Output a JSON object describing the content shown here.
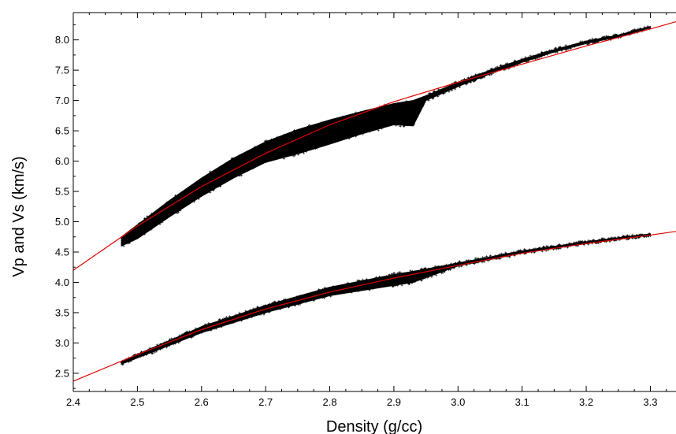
{
  "chart_data": {
    "type": "scatter",
    "title": "",
    "xlabel": "Density (g/cc)",
    "ylabel": "Vp and Vs (km/s)",
    "xlim": [
      2.4,
      3.34
    ],
    "ylim": [
      2.2,
      8.45
    ],
    "x_ticks": [
      "2.4",
      "2.5",
      "2.6",
      "2.7",
      "2.8",
      "2.9",
      "3.0",
      "3.1",
      "3.2",
      "3.3"
    ],
    "y_ticks": [
      "2.5",
      "3.0",
      "3.5",
      "4.0",
      "4.5",
      "5.0",
      "5.5",
      "6.0",
      "6.5",
      "7.0",
      "7.5",
      "8.0"
    ],
    "grid": false,
    "colors": {
      "points": "#000000",
      "fit": "#e00000"
    },
    "series": [
      {
        "kind": "scatter",
        "band": "upper",
        "x": [
          2.475,
          2.5,
          2.55,
          2.6,
          2.65,
          2.7,
          2.75,
          2.8,
          2.85,
          2.9,
          2.93,
          2.95,
          3.0,
          3.05,
          3.1,
          3.15,
          3.2,
          3.25,
          3.3
        ],
        "y_upper": [
          4.75,
          4.95,
          5.35,
          5.72,
          6.05,
          6.32,
          6.52,
          6.68,
          6.82,
          6.95,
          7.0,
          7.08,
          7.3,
          7.5,
          7.68,
          7.84,
          7.98,
          8.08,
          8.22
        ],
        "y_lower": [
          4.6,
          4.72,
          5.08,
          5.42,
          5.72,
          5.98,
          6.12,
          6.28,
          6.45,
          6.6,
          6.58,
          7.0,
          7.23,
          7.44,
          7.63,
          7.8,
          7.94,
          8.05,
          8.2
        ]
      },
      {
        "kind": "scatter",
        "band": "lower",
        "x": [
          2.475,
          2.55,
          2.6,
          2.7,
          2.8,
          2.9,
          2.93,
          3.0,
          3.1,
          3.2,
          3.3
        ],
        "y_upper": [
          2.7,
          3.04,
          3.27,
          3.62,
          3.92,
          4.13,
          4.18,
          4.32,
          4.52,
          4.67,
          4.8
        ],
        "y_lower": [
          2.65,
          2.96,
          3.17,
          3.5,
          3.78,
          3.95,
          4.0,
          4.27,
          4.48,
          4.64,
          4.78
        ]
      },
      {
        "kind": "line",
        "x": [
          2.4,
          2.5,
          2.6,
          2.7,
          2.8,
          2.9,
          3.0,
          3.1,
          3.2,
          3.3,
          3.34
        ],
        "y": [
          4.2,
          4.93,
          5.58,
          6.13,
          6.6,
          6.98,
          7.3,
          7.6,
          7.9,
          8.18,
          8.3
        ]
      },
      {
        "kind": "line",
        "x": [
          2.4,
          2.5,
          2.6,
          2.7,
          2.8,
          2.9,
          3.0,
          3.1,
          3.2,
          3.3,
          3.34
        ],
        "y": [
          2.37,
          2.81,
          3.22,
          3.56,
          3.84,
          4.07,
          4.28,
          4.48,
          4.64,
          4.78,
          4.84
        ]
      }
    ]
  }
}
